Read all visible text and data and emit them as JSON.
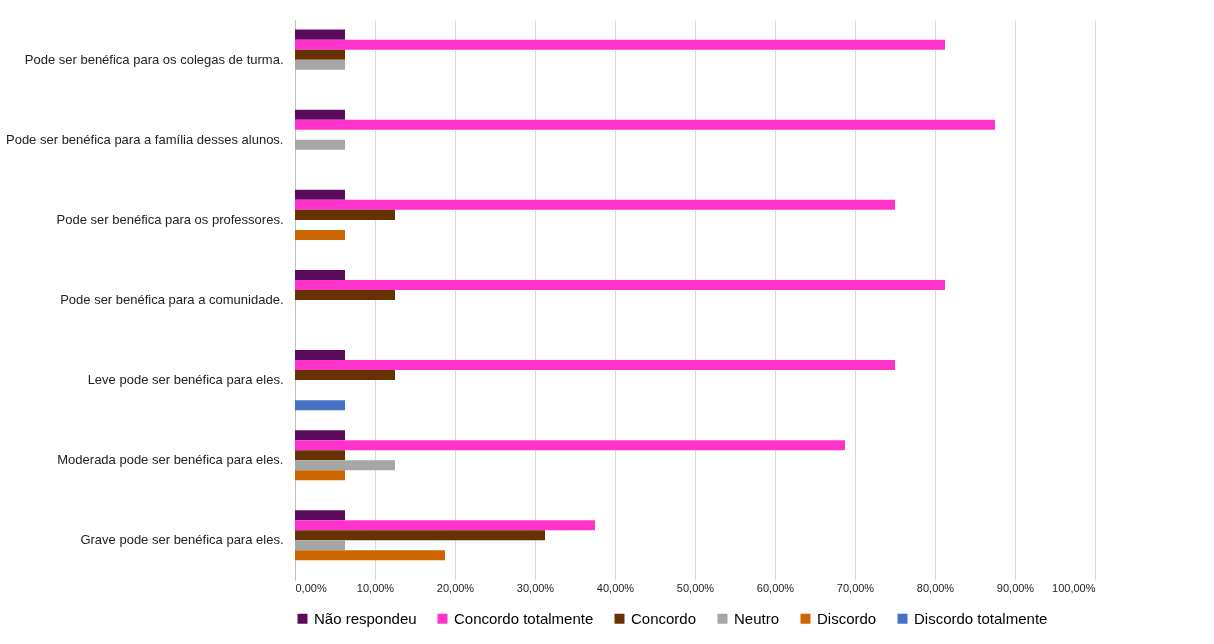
{
  "chart_data": {
    "type": "bar",
    "orientation": "horizontal",
    "categories": [
      "Pode ser benéfica para os colegas de turma.",
      "Pode ser benéfica para a família desses alunos.",
      "Pode ser benéfica para os professores.",
      "Pode ser benéfica para a comunidade.",
      "Leve pode ser benéfica para eles.",
      "Moderada pode ser benéfica para eles.",
      "Grave pode ser benéfica para eles."
    ],
    "series": [
      {
        "name": "Não respondeu",
        "color": "#5c0a5c",
        "values": [
          6.25,
          6.25,
          6.25,
          6.25,
          6.25,
          6.25,
          6.25
        ]
      },
      {
        "name": "Concordo totalmente",
        "color": "#ff33cc",
        "values": [
          81.25,
          87.5,
          75,
          81.25,
          75,
          68.75,
          37.5
        ]
      },
      {
        "name": "Concordo",
        "color": "#663300",
        "values": [
          6.25,
          0,
          12.5,
          12.5,
          12.5,
          6.25,
          31.25
        ]
      },
      {
        "name": "Neutro",
        "color": "#a6a6a6",
        "values": [
          6.25,
          6.25,
          0,
          0,
          0,
          12.5,
          6.25
        ]
      },
      {
        "name": "Discordo",
        "color": "#cc6600",
        "values": [
          0,
          0,
          6.25,
          0,
          0,
          6.25,
          18.75
        ]
      },
      {
        "name": "Discordo totalmente",
        "color": "#4472c4",
        "values": [
          0,
          0,
          0,
          0,
          6.25,
          0,
          0
        ]
      }
    ],
    "xlim": [
      0,
      100
    ],
    "xticks": [
      {
        "value": 0,
        "label": "0,00%"
      },
      {
        "value": 10,
        "label": "10,00%"
      },
      {
        "value": 20,
        "label": "20,00%"
      },
      {
        "value": 30,
        "label": "30,00%"
      },
      {
        "value": 40,
        "label": "40,00%"
      },
      {
        "value": 50,
        "label": "50,00%"
      },
      {
        "value": 60,
        "label": "60,00%"
      },
      {
        "value": 70,
        "label": "70,00%"
      },
      {
        "value": 80,
        "label": "80,00%"
      },
      {
        "value": 90,
        "label": "90,00%"
      },
      {
        "value": 100,
        "label": "100,00%"
      }
    ],
    "grid": "x",
    "legend": "bottom"
  }
}
